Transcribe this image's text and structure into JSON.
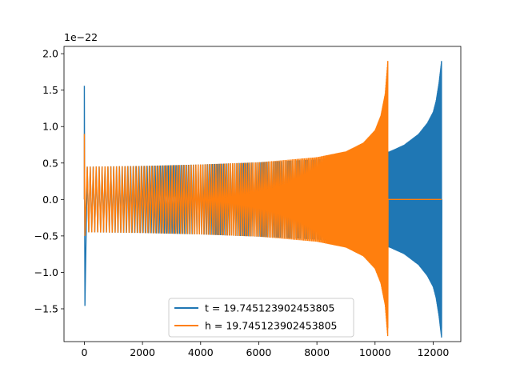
{
  "chart_data": {
    "type": "line",
    "title": "",
    "xlabel": "",
    "ylabel": "",
    "y_offset_label": "1e−22",
    "xlim": [
      -700,
      12950
    ],
    "ylim": [
      -1.95,
      2.1
    ],
    "xticks": [
      0,
      2000,
      4000,
      6000,
      8000,
      10000,
      12000
    ],
    "xtick_labels": [
      "0",
      "2000",
      "4000",
      "6000",
      "8000",
      "10000",
      "12000"
    ],
    "yticks": [
      -1.5,
      -1.0,
      -0.5,
      0.0,
      0.5,
      1.0,
      1.5,
      2.0
    ],
    "ytick_labels": [
      "−1.5",
      "−1.0",
      "−0.5",
      "0.0",
      "0.5",
      "1.0",
      "1.5",
      "2.0"
    ],
    "grid": false,
    "legend_position": "lower-center",
    "series": [
      {
        "name": "t = 19.745123902453805",
        "color": "#1f77b4",
        "x_start": 0,
        "x_end": 12288,
        "spike": {
          "x": 0,
          "max": 1.56,
          "min": -1.46
        },
        "envelope": [
          [
            100,
            0.45
          ],
          [
            2000,
            0.46
          ],
          [
            4000,
            0.48
          ],
          [
            6000,
            0.51
          ],
          [
            8000,
            0.55
          ],
          [
            10000,
            0.62
          ],
          [
            10500,
            0.66
          ],
          [
            11000,
            0.75
          ],
          [
            11500,
            0.9
          ],
          [
            11800,
            1.05
          ],
          [
            12000,
            1.2
          ],
          [
            12100,
            1.35
          ],
          [
            12200,
            1.6
          ],
          [
            12288,
            1.9
          ]
        ],
        "after_end": 0.0
      },
      {
        "name": "h = 19.745123902453805",
        "color": "#ff7f0e",
        "x_start": 0,
        "x_end": 10440,
        "spike": {
          "x": 0,
          "max": 0.9,
          "min": -0.5
        },
        "envelope": [
          [
            100,
            0.45
          ],
          [
            2000,
            0.46
          ],
          [
            4000,
            0.48
          ],
          [
            6000,
            0.51
          ],
          [
            8000,
            0.58
          ],
          [
            9000,
            0.66
          ],
          [
            9600,
            0.78
          ],
          [
            10000,
            0.95
          ],
          [
            10200,
            1.15
          ],
          [
            10350,
            1.45
          ],
          [
            10440,
            1.9
          ]
        ],
        "after_start": 10450,
        "after_end": 12288,
        "after_value": 0.0
      }
    ]
  }
}
